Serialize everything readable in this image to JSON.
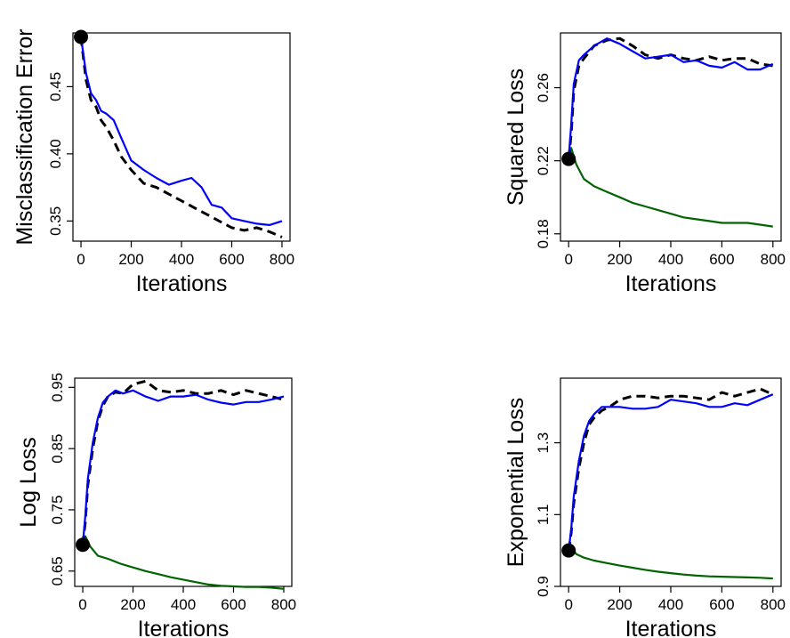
{
  "chart_data": [
    {
      "type": "line",
      "panel": "top-left",
      "xlabel": "Iterations",
      "ylabel": "Misclassification Error",
      "xlim": [
        0,
        800
      ],
      "ylim": [
        0.335,
        0.49
      ],
      "xticks": [
        0,
        200,
        400,
        600,
        800
      ],
      "yticks": [
        0.35,
        0.4,
        0.45
      ],
      "ytick_labels": [
        "0.35",
        "0.40",
        "0.45"
      ],
      "start_point": [
        0,
        0.487
      ],
      "series": [
        {
          "color": "#0000ff",
          "dash": "solid",
          "x": [
            0,
            20,
            40,
            60,
            80,
            100,
            130,
            160,
            200,
            250,
            300,
            350,
            400,
            440,
            480,
            520,
            560,
            600,
            650,
            700,
            750,
            800
          ],
          "y": [
            0.487,
            0.46,
            0.445,
            0.44,
            0.432,
            0.43,
            0.425,
            0.412,
            0.395,
            0.388,
            0.382,
            0.377,
            0.38,
            0.382,
            0.375,
            0.362,
            0.36,
            0.352,
            0.35,
            0.348,
            0.347,
            0.35
          ]
        },
        {
          "color": "#000000",
          "dash": "dashed",
          "x": [
            0,
            20,
            40,
            60,
            80,
            100,
            130,
            160,
            200,
            250,
            300,
            350,
            400,
            450,
            500,
            550,
            600,
            650,
            700,
            750,
            800
          ],
          "y": [
            0.487,
            0.455,
            0.44,
            0.435,
            0.425,
            0.42,
            0.41,
            0.398,
            0.388,
            0.378,
            0.375,
            0.37,
            0.365,
            0.36,
            0.355,
            0.35,
            0.345,
            0.343,
            0.345,
            0.342,
            0.338
          ]
        }
      ]
    },
    {
      "type": "line",
      "panel": "top-right",
      "xlabel": "Iterations",
      "ylabel": "Squared Loss",
      "xlim": [
        0,
        800
      ],
      "ylim": [
        0.176,
        0.29
      ],
      "xticks": [
        0,
        200,
        400,
        600,
        800
      ],
      "yticks": [
        0.18,
        0.22,
        0.26
      ],
      "ytick_labels": [
        "0.18",
        "0.22",
        "0.26"
      ],
      "start_point": [
        0,
        0.221
      ],
      "series": [
        {
          "color": "#0000ff",
          "dash": "solid",
          "x": [
            0,
            10,
            20,
            40,
            60,
            100,
            150,
            200,
            250,
            300,
            350,
            400,
            450,
            500,
            550,
            600,
            650,
            700,
            750,
            800
          ],
          "y": [
            0.221,
            0.24,
            0.262,
            0.275,
            0.278,
            0.283,
            0.287,
            0.284,
            0.28,
            0.276,
            0.277,
            0.278,
            0.274,
            0.275,
            0.272,
            0.271,
            0.274,
            0.27,
            0.27,
            0.273
          ]
        },
        {
          "color": "#000000",
          "dash": "dashed",
          "x": [
            0,
            10,
            20,
            40,
            60,
            100,
            150,
            200,
            250,
            300,
            350,
            400,
            450,
            500,
            550,
            600,
            650,
            700,
            750,
            800
          ],
          "y": [
            0.221,
            0.235,
            0.258,
            0.272,
            0.276,
            0.283,
            0.286,
            0.287,
            0.283,
            0.278,
            0.276,
            0.278,
            0.276,
            0.275,
            0.277,
            0.275,
            0.276,
            0.276,
            0.273,
            0.272
          ]
        },
        {
          "color": "#006400",
          "dash": "solid",
          "x": [
            0,
            10,
            30,
            60,
            100,
            150,
            200,
            250,
            300,
            350,
            400,
            450,
            500,
            550,
            600,
            650,
            700,
            750,
            800
          ],
          "y": [
            0.221,
            0.227,
            0.218,
            0.21,
            0.206,
            0.203,
            0.2,
            0.197,
            0.195,
            0.193,
            0.191,
            0.189,
            0.188,
            0.187,
            0.186,
            0.186,
            0.186,
            0.185,
            0.184
          ]
        }
      ]
    },
    {
      "type": "line",
      "panel": "bottom-left",
      "xlabel": "Iterations",
      "ylabel": "Log Loss",
      "xlim": [
        0,
        800
      ],
      "ylim": [
        0.625,
        0.965
      ],
      "xticks": [
        0,
        200,
        400,
        600,
        800
      ],
      "yticks": [
        0.65,
        0.75,
        0.85,
        0.95
      ],
      "ytick_labels": [
        "0.65",
        "0.75",
        "0.85",
        "0.95"
      ],
      "start_point": [
        0,
        0.693
      ],
      "series": [
        {
          "color": "#0000ff",
          "dash": "solid",
          "x": [
            0,
            10,
            20,
            40,
            60,
            80,
            100,
            130,
            160,
            200,
            250,
            300,
            350,
            400,
            450,
            500,
            550,
            600,
            650,
            700,
            750,
            800
          ],
          "y": [
            0.693,
            0.74,
            0.8,
            0.86,
            0.9,
            0.925,
            0.935,
            0.945,
            0.94,
            0.945,
            0.935,
            0.928,
            0.935,
            0.935,
            0.938,
            0.93,
            0.925,
            0.922,
            0.926,
            0.926,
            0.93,
            0.935
          ]
        },
        {
          "color": "#000000",
          "dash": "dashed",
          "x": [
            0,
            10,
            20,
            40,
            60,
            80,
            100,
            130,
            160,
            200,
            250,
            300,
            350,
            400,
            450,
            500,
            550,
            600,
            650,
            700,
            750,
            800
          ],
          "y": [
            0.693,
            0.73,
            0.79,
            0.85,
            0.895,
            0.92,
            0.935,
            0.942,
            0.94,
            0.955,
            0.96,
            0.945,
            0.942,
            0.945,
            0.94,
            0.94,
            0.945,
            0.938,
            0.945,
            0.94,
            0.935,
            0.93
          ]
        },
        {
          "color": "#006400",
          "dash": "solid",
          "x": [
            0,
            10,
            30,
            60,
            100,
            150,
            200,
            250,
            300,
            350,
            400,
            450,
            500,
            550,
            600,
            650,
            700,
            750,
            800
          ],
          "y": [
            0.693,
            0.707,
            0.69,
            0.675,
            0.67,
            0.662,
            0.656,
            0.65,
            0.645,
            0.64,
            0.636,
            0.632,
            0.628,
            0.626,
            0.625,
            0.624,
            0.624,
            0.623,
            0.621
          ]
        }
      ]
    },
    {
      "type": "line",
      "panel": "bottom-right",
      "xlabel": "Iterations",
      "ylabel": "Exponential Loss",
      "xlim": [
        0,
        800
      ],
      "ylim": [
        0.9,
        1.48
      ],
      "xticks": [
        0,
        200,
        400,
        600,
        800
      ],
      "yticks": [
        0.9,
        1.1,
        1.3
      ],
      "ytick_labels": [
        "0.9",
        "1.1",
        "1.3"
      ],
      "start_point": [
        0,
        1.0
      ],
      "series": [
        {
          "color": "#0000ff",
          "dash": "solid",
          "x": [
            0,
            10,
            20,
            40,
            60,
            80,
            100,
            130,
            160,
            200,
            250,
            300,
            350,
            400,
            450,
            500,
            550,
            600,
            650,
            700,
            750,
            800
          ],
          "y": [
            1.0,
            1.06,
            1.15,
            1.25,
            1.32,
            1.36,
            1.38,
            1.4,
            1.4,
            1.4,
            1.395,
            1.395,
            1.4,
            1.42,
            1.415,
            1.41,
            1.4,
            1.4,
            1.41,
            1.405,
            1.42,
            1.435
          ]
        },
        {
          "color": "#000000",
          "dash": "dashed",
          "x": [
            0,
            10,
            20,
            40,
            60,
            80,
            100,
            130,
            160,
            200,
            250,
            300,
            350,
            400,
            450,
            500,
            550,
            600,
            650,
            700,
            750,
            800
          ],
          "y": [
            1.0,
            1.05,
            1.13,
            1.23,
            1.3,
            1.35,
            1.37,
            1.39,
            1.4,
            1.42,
            1.43,
            1.43,
            1.425,
            1.43,
            1.43,
            1.425,
            1.42,
            1.44,
            1.43,
            1.44,
            1.45,
            1.435
          ]
        },
        {
          "color": "#006400",
          "dash": "solid",
          "x": [
            0,
            10,
            30,
            60,
            100,
            150,
            200,
            250,
            300,
            350,
            400,
            450,
            500,
            550,
            600,
            650,
            700,
            750,
            800
          ],
          "y": [
            1.0,
            1.01,
            0.99,
            0.98,
            0.972,
            0.965,
            0.958,
            0.952,
            0.946,
            0.941,
            0.937,
            0.933,
            0.93,
            0.928,
            0.927,
            0.926,
            0.925,
            0.924,
            0.922
          ]
        }
      ]
    }
  ]
}
